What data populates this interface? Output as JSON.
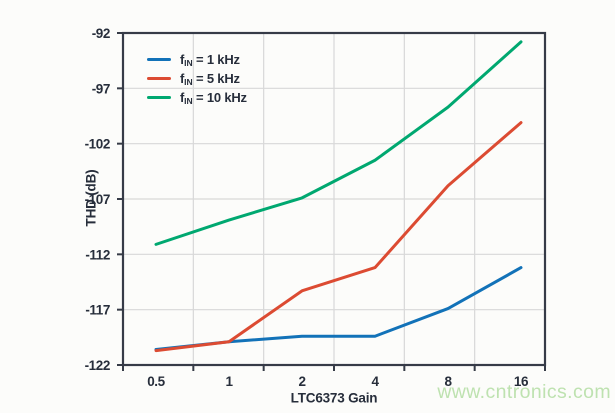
{
  "watermark": "www.cntronics.com",
  "colors": {
    "axis": "#363B47",
    "grid": "#D8D8D8",
    "text": "#272E3B",
    "watermark_green": "#BEE2B0",
    "background": "#FCFCFA",
    "series_blue": "#1272B8",
    "series_red": "#DC4B32",
    "series_green": "#00A870"
  },
  "chart_data": {
    "type": "line",
    "title": "",
    "xlabel": "LTC6373 Gain",
    "ylabel": "THD (dB)",
    "x_scale": "log2 (category bands, labels centered, gridlines at band boundaries)",
    "categories": [
      0.5,
      1,
      2,
      4,
      8,
      16
    ],
    "x_tick_labels": [
      "0.5",
      "1",
      "2",
      "4",
      "8",
      "16"
    ],
    "y_ticks": [
      -92,
      -97,
      -102,
      -107,
      -112,
      -117,
      -122
    ],
    "ylim": [
      -122,
      -92
    ],
    "grid": true,
    "legend_position": "top-left-inside",
    "series": [
      {
        "name": "fIN = 1 kHz",
        "legend_f": "f",
        "legend_sub": "IN",
        "legend_rest": " = 1 kHz",
        "color": "#1272B8",
        "values": [
          -120.6,
          -119.9,
          -119.4,
          -119.4,
          -116.9,
          -113.2
        ]
      },
      {
        "name": "fIN = 5 kHz",
        "legend_f": "f",
        "legend_sub": "IN",
        "legend_rest": " = 5 kHz",
        "color": "#DC4B32",
        "values": [
          -120.7,
          -119.9,
          -115.3,
          -113.2,
          -105.8,
          -100.1
        ]
      },
      {
        "name": "fIN = 10 kHz",
        "legend_f": "f",
        "legend_sub": "IN",
        "legend_rest": " = 10 kHz",
        "color": "#00A870",
        "values": [
          -111.1,
          -108.9,
          -106.9,
          -103.5,
          -98.7,
          -92.8
        ]
      }
    ]
  }
}
